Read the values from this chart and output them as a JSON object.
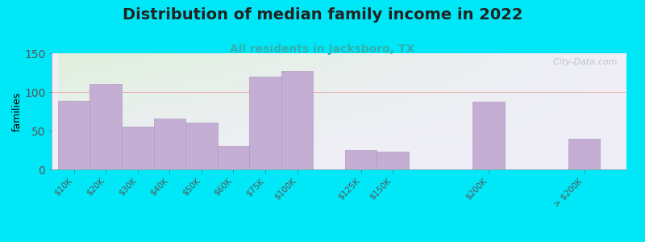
{
  "title": "Distribution of median family income in 2022",
  "subtitle": "All residents in Jacksboro, TX",
  "watermark": "  City-Data.com",
  "ylabel": "families",
  "categories": [
    "$10K",
    "$20K",
    "$30K",
    "$40K",
    "$50K",
    "$60K",
    "$75K",
    "$100K",
    "$125K",
    "$150K",
    "$200K",
    "> $200K"
  ],
  "values": [
    89,
    110,
    55,
    66,
    60,
    30,
    120,
    127,
    25,
    23,
    87,
    40
  ],
  "bar_color": "#c4aed4",
  "bar_edge_color": "#b09cc0",
  "bg_outer": "#00e8f8",
  "bg_plot_topleft": "#dff0dd",
  "bg_plot_right": "#f0eef8",
  "title_fontsize": 14,
  "subtitle_fontsize": 10,
  "subtitle_color": "#30b0b0",
  "ylabel_fontsize": 9,
  "watermark_color": "#b8b8c8",
  "ylim": [
    0,
    150
  ],
  "yticks": [
    0,
    50,
    100,
    150
  ],
  "hline_color": "#e8a0a0",
  "hline_y": 100,
  "bar_positions": [
    0,
    1,
    2,
    3,
    4,
    5,
    6,
    7,
    9,
    10,
    13,
    16
  ],
  "bar_width": 1.0
}
